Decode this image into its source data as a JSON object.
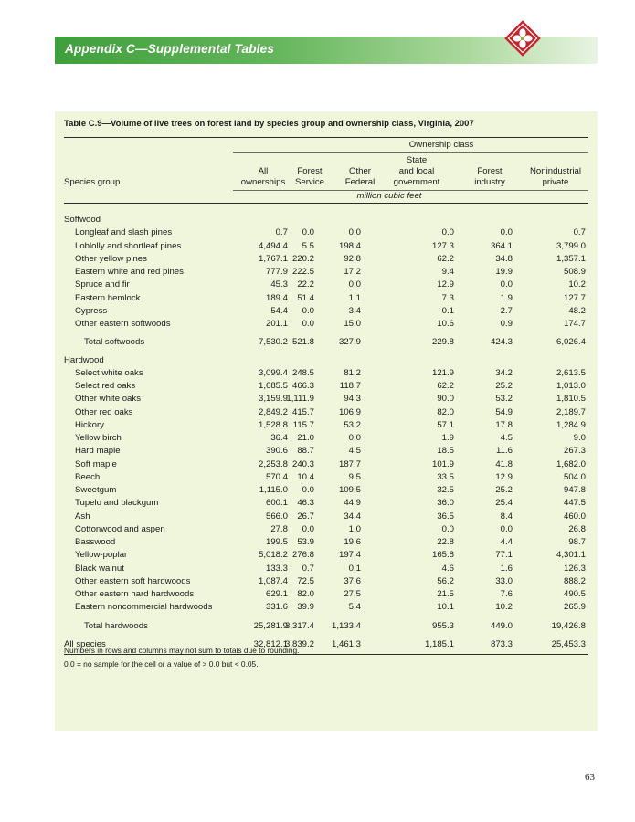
{
  "header": {
    "banner_title": "Appendix C—Supplemental Tables"
  },
  "table": {
    "title": "Table C.9—Volume of live trees on forest land by species group and ownership class, Virginia, 2007",
    "spanner": "Ownership class",
    "row_header": "Species group",
    "units": "million cubic feet",
    "columns": [
      [
        "",
        "All",
        "ownerships"
      ],
      [
        "",
        "Forest",
        "Service"
      ],
      [
        "",
        "Other",
        "Federal"
      ],
      [
        "State",
        "and local",
        "government"
      ],
      [
        "",
        "Forest",
        "industry"
      ],
      [
        "",
        "Nonindustrial",
        "private"
      ]
    ],
    "sections": [
      {
        "label": "Softwood",
        "rows": [
          {
            "name": "Longleaf and slash pines",
            "values": [
              "0.7",
              "0.0",
              "0.0",
              "0.0",
              "0.0",
              "0.7"
            ]
          },
          {
            "name": "Loblolly and shortleaf pines",
            "values": [
              "4,494.4",
              "5.5",
              "198.4",
              "127.3",
              "364.1",
              "3,799.0"
            ]
          },
          {
            "name": "Other yellow pines",
            "values": [
              "1,767.1",
              "220.2",
              "92.8",
              "62.2",
              "34.8",
              "1,357.1"
            ]
          },
          {
            "name": "Eastern white and red pines",
            "values": [
              "777.9",
              "222.5",
              "17.2",
              "9.4",
              "19.9",
              "508.9"
            ]
          },
          {
            "name": "Spruce and fir",
            "values": [
              "45.3",
              "22.2",
              "0.0",
              "12.9",
              "0.0",
              "10.2"
            ]
          },
          {
            "name": "Eastern hemlock",
            "values": [
              "189.4",
              "51.4",
              "1.1",
              "7.3",
              "1.9",
              "127.7"
            ]
          },
          {
            "name": "Cypress",
            "values": [
              "54.4",
              "0.0",
              "3.4",
              "0.1",
              "2.7",
              "48.2"
            ]
          },
          {
            "name": "Other eastern softwoods",
            "values": [
              "201.1",
              "0.0",
              "15.0",
              "10.6",
              "0.9",
              "174.7"
            ]
          }
        ],
        "total": {
          "name": "Total softwoods",
          "values": [
            "7,530.2",
            "521.8",
            "327.9",
            "229.8",
            "424.3",
            "6,026.4"
          ]
        }
      },
      {
        "label": "Hardwood",
        "rows": [
          {
            "name": "Select white oaks",
            "values": [
              "3,099.4",
              "248.5",
              "81.2",
              "121.9",
              "34.2",
              "2,613.5"
            ]
          },
          {
            "name": "Select red oaks",
            "values": [
              "1,685.5",
              "466.3",
              "118.7",
              "62.2",
              "25.2",
              "1,013.0"
            ]
          },
          {
            "name": "Other white oaks",
            "values": [
              "3,159.9",
              "1,111.9",
              "94.3",
              "90.0",
              "53.2",
              "1,810.5"
            ]
          },
          {
            "name": "Other red oaks",
            "values": [
              "2,849.2",
              "415.7",
              "106.9",
              "82.0",
              "54.9",
              "2,189.7"
            ]
          },
          {
            "name": "Hickory",
            "values": [
              "1,528.8",
              "115.7",
              "53.2",
              "57.1",
              "17.8",
              "1,284.9"
            ]
          },
          {
            "name": "Yellow birch",
            "values": [
              "36.4",
              "21.0",
              "0.0",
              "1.9",
              "4.5",
              "9.0"
            ]
          },
          {
            "name": "Hard maple",
            "values": [
              "390.6",
              "88.7",
              "4.5",
              "18.5",
              "11.6",
              "267.3"
            ]
          },
          {
            "name": "Soft maple",
            "values": [
              "2,253.8",
              "240.3",
              "187.7",
              "101.9",
              "41.8",
              "1,682.0"
            ]
          },
          {
            "name": "Beech",
            "values": [
              "570.4",
              "10.4",
              "9.5",
              "33.5",
              "12.9",
              "504.0"
            ]
          },
          {
            "name": "Sweetgum",
            "values": [
              "1,115.0",
              "0.0",
              "109.5",
              "32.5",
              "25.2",
              "947.8"
            ]
          },
          {
            "name": "Tupelo and blackgum",
            "values": [
              "600.1",
              "46.3",
              "44.9",
              "36.0",
              "25.4",
              "447.5"
            ]
          },
          {
            "name": "Ash",
            "values": [
              "566.0",
              "26.7",
              "34.4",
              "36.5",
              "8.4",
              "460.0"
            ]
          },
          {
            "name": "Cottonwood and aspen",
            "values": [
              "27.8",
              "0.0",
              "1.0",
              "0.0",
              "0.0",
              "26.8"
            ]
          },
          {
            "name": "Basswood",
            "values": [
              "199.5",
              "53.9",
              "19.6",
              "22.8",
              "4.4",
              "98.7"
            ]
          },
          {
            "name": "Yellow-poplar",
            "values": [
              "5,018.2",
              "276.8",
              "197.4",
              "165.8",
              "77.1",
              "4,301.1"
            ]
          },
          {
            "name": "Black walnut",
            "values": [
              "133.3",
              "0.7",
              "0.1",
              "4.6",
              "1.6",
              "126.3"
            ]
          },
          {
            "name": "Other eastern soft hardwoods",
            "values": [
              "1,087.4",
              "72.5",
              "37.6",
              "56.2",
              "33.0",
              "888.2"
            ]
          },
          {
            "name": "Other eastern hard hardwoods",
            "values": [
              "629.1",
              "82.0",
              "27.5",
              "21.5",
              "7.6",
              "490.5"
            ]
          },
          {
            "name": "Eastern noncommercial hardwoods",
            "values": [
              "331.6",
              "39.9",
              "5.4",
              "10.1",
              "10.2",
              "265.9"
            ]
          }
        ],
        "total": {
          "name": "Total hardwoods",
          "values": [
            "25,281.9",
            "3,317.4",
            "1,133.4",
            "955.3",
            "449.0",
            "19,426.8"
          ]
        }
      }
    ],
    "grand_total": {
      "name": "All species",
      "values": [
        "32,812.1",
        "3,839.2",
        "1,461.3",
        "1,185.1",
        "873.3",
        "25,453.3"
      ]
    },
    "notes": [
      "Numbers in rows and columns may not sum to totals due to rounding.",
      "0.0 = no sample for the cell or a value of > 0.0 but < 0.05."
    ]
  },
  "footer": {
    "page_number": "63"
  },
  "colors": {
    "banner_green": "#3f9f3c",
    "panel_background": "#f0f6dc",
    "logo_red": "#c4262e"
  },
  "icons": {
    "logo": "dogwood-flower-icon"
  }
}
